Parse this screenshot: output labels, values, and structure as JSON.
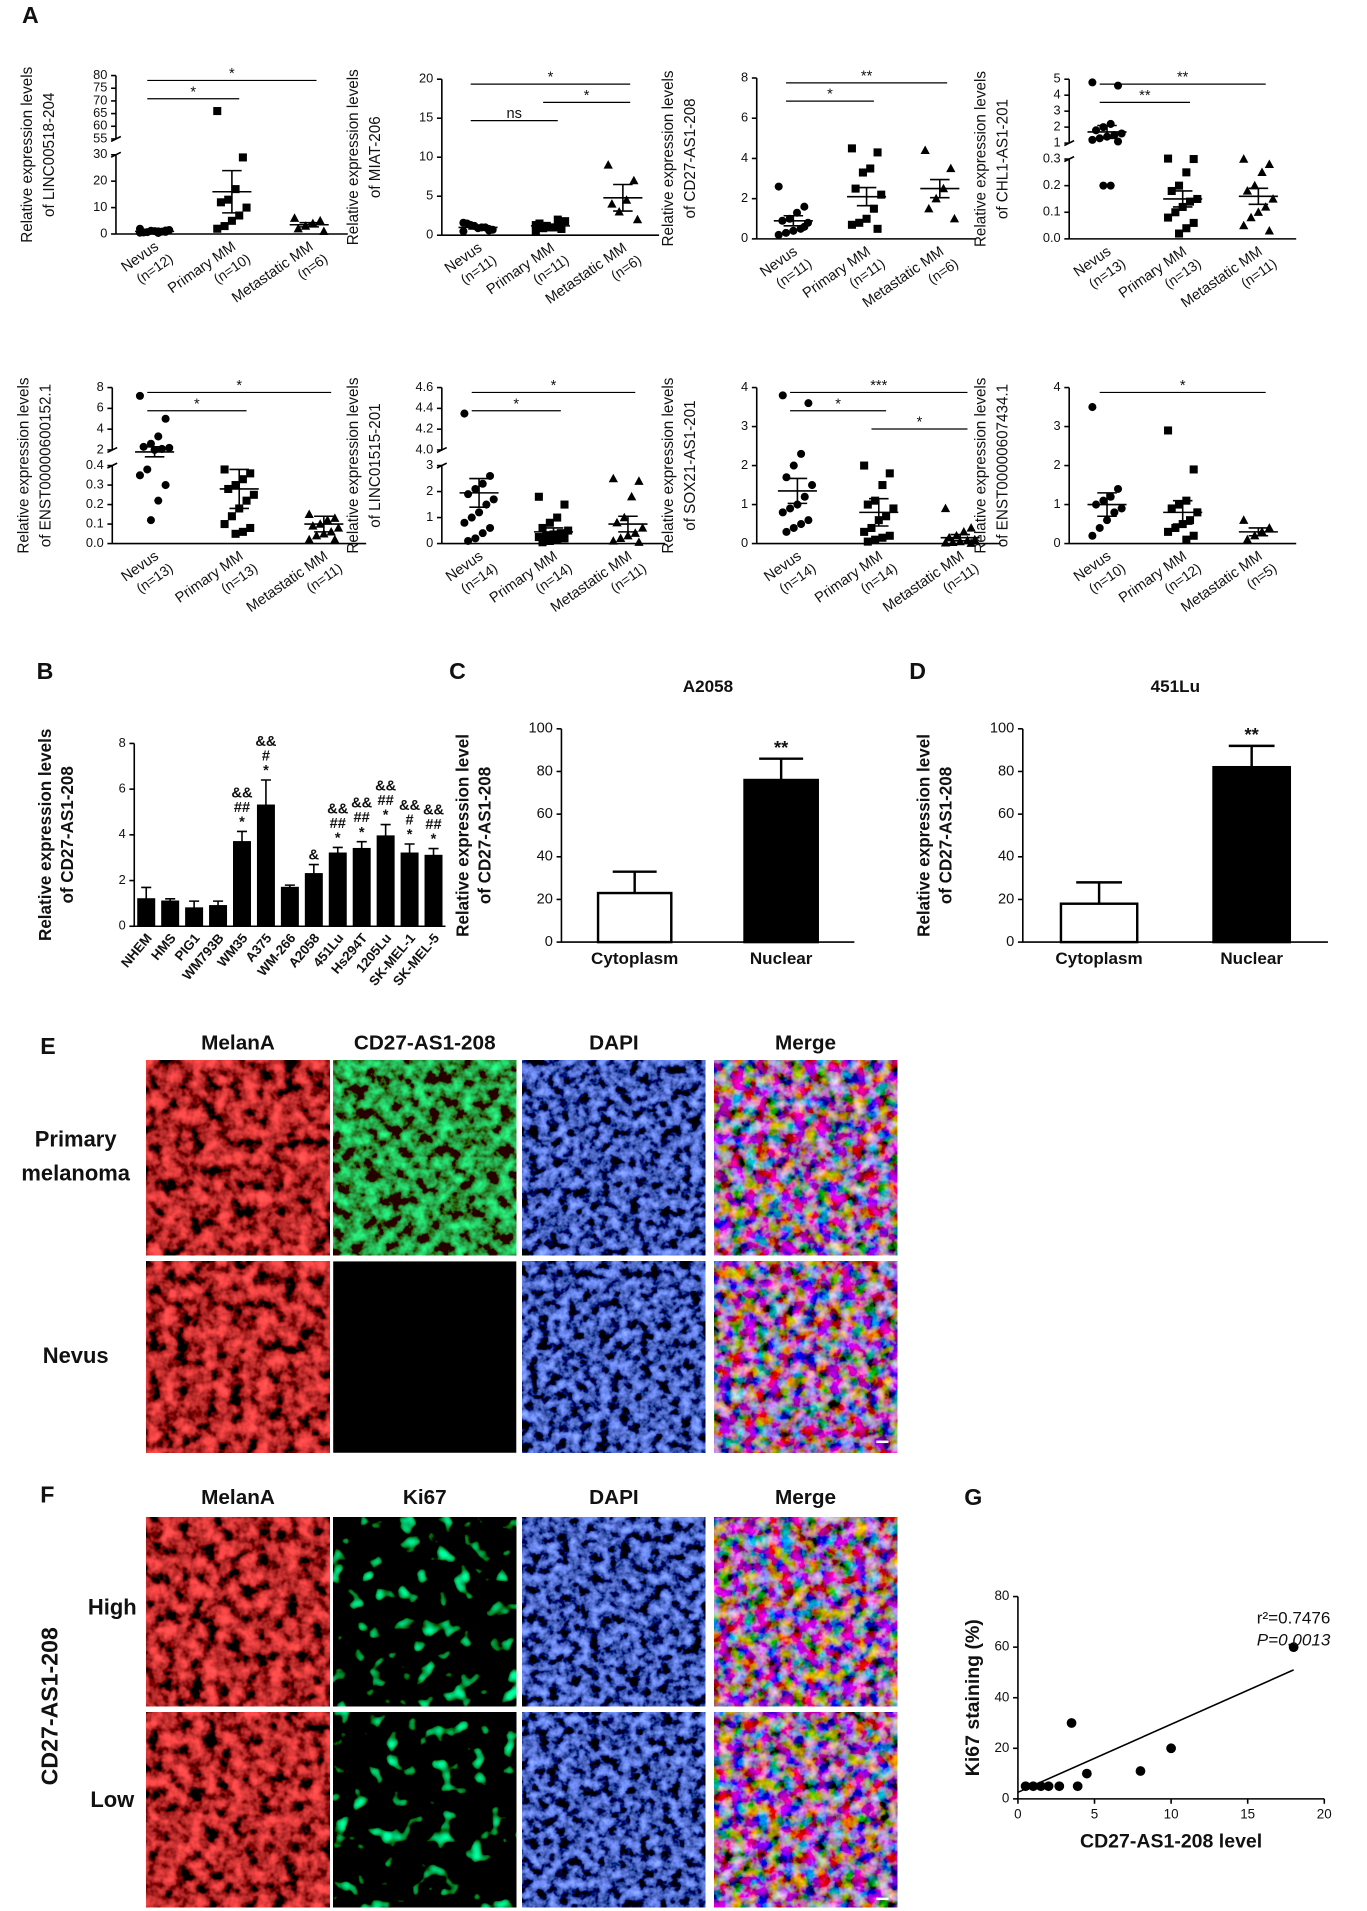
{
  "panel_labels": [
    "A",
    "B",
    "C",
    "D",
    "E",
    "F",
    "G"
  ],
  "chart_data": [
    {
      "type": "dotplot",
      "ylabel": [
        "Relative expression levels",
        "of LINC00518-204"
      ],
      "segments": [
        {
          "ylim": [
            0,
            30
          ],
          "yticks": [
            0,
            10,
            20,
            30
          ]
        },
        {
          "ylim": [
            55,
            80
          ],
          "yticks": [
            55,
            60,
            65,
            70,
            75,
            80
          ]
        }
      ],
      "groups": [
        {
          "name": "Nevus",
          "n_label": "(n=12)",
          "marker": "circle",
          "points": [
            0.5,
            0.8,
            1,
            1.2,
            0.6,
            1.5,
            0.9,
            1.1,
            0.7,
            2,
            1.3,
            0.4
          ],
          "mean": 1,
          "sem": 0.3
        },
        {
          "name": "Primary MM",
          "n_label": "(n=10)",
          "marker": "square",
          "points": [
            66,
            29,
            17,
            13,
            12,
            10,
            7,
            5,
            3,
            2
          ],
          "mean": 16,
          "sem": 8
        },
        {
          "name": "Metastatic MM",
          "n_label": "(n=6)",
          "marker": "triangle",
          "points": [
            6,
            5,
            4,
            3,
            2,
            1
          ],
          "mean": 3.5,
          "sem": 0.8
        }
      ],
      "significance": [
        {
          "from": 0,
          "to": 2,
          "label": "*"
        },
        {
          "from": 0,
          "to": 1,
          "label": "*"
        }
      ]
    },
    {
      "type": "dotplot",
      "ylabel": [
        "Relative expression levels",
        "of MIAT-206"
      ],
      "ylim": [
        0,
        20
      ],
      "yticks": [
        0,
        5,
        10,
        15,
        20
      ],
      "groups": [
        {
          "name": "Nevus",
          "n_label": "(n=11)",
          "marker": "circle",
          "points": [
            0.5,
            0.8,
            1,
            1.2,
            1.5,
            0.7,
            1,
            0.9,
            1.3,
            1.6,
            0.6
          ],
          "mean": 1,
          "sem": 0.2
        },
        {
          "name": "Primary MM",
          "n_label": "(n=11)",
          "marker": "square",
          "points": [
            0.5,
            0.8,
            1,
            1.2,
            1.5,
            1.8,
            2,
            1,
            0.9,
            1.3,
            1.1
          ],
          "mean": 1.2,
          "sem": 0.2
        },
        {
          "name": "Metastatic MM",
          "n_label": "(n=6)",
          "marker": "triangle",
          "points": [
            9,
            7,
            4.5,
            3,
            4,
            2
          ],
          "mean": 4.8,
          "sem": 1.7
        }
      ],
      "significance": [
        {
          "from": 0,
          "to": 2,
          "label": "*"
        },
        {
          "from": 1,
          "to": 2,
          "label": "*"
        },
        {
          "from": 0,
          "to": 1,
          "label": "ns"
        }
      ]
    },
    {
      "type": "dotplot",
      "ylabel": [
        "Relative expression levels",
        "of CD27-AS1-208"
      ],
      "ylim": [
        0,
        8
      ],
      "yticks": [
        0,
        2,
        4,
        6,
        8
      ],
      "groups": [
        {
          "name": "Nevus",
          "n_label": "(n=11)",
          "marker": "circle",
          "points": [
            2.6,
            1.6,
            1.3,
            1,
            0.9,
            0.8,
            0.5,
            0.4,
            0.3,
            0.2,
            0.6
          ],
          "mean": 0.9,
          "sem": 0.25
        },
        {
          "name": "Primary MM",
          "n_label": "(n=11)",
          "marker": "square",
          "points": [
            4.5,
            4.3,
            3.5,
            3.3,
            2.5,
            2.2,
            1.5,
            1,
            0.8,
            0.7,
            0.5
          ],
          "mean": 2.1,
          "sem": 0.45
        },
        {
          "name": "Metastatic MM",
          "n_label": "(n=6)",
          "marker": "triangle",
          "points": [
            4.4,
            3.5,
            2.5,
            2,
            1.5,
            1
          ],
          "mean": 2.5,
          "sem": 0.45
        }
      ],
      "significance": [
        {
          "from": 0,
          "to": 2,
          "label": "**"
        },
        {
          "from": 0,
          "to": 1,
          "label": "*"
        }
      ]
    },
    {
      "type": "dotplot",
      "ylabel": [
        "Relative expression levels",
        "of CHL1-AS1-201"
      ],
      "segments": [
        {
          "ylim": [
            0,
            0.3
          ],
          "yticks": [
            {
              "value": 0,
              "label": "0.0"
            },
            0.1,
            0.2,
            0.3
          ]
        },
        {
          "ylim": [
            1,
            5
          ],
          "yticks": [
            1,
            2,
            3,
            4,
            5
          ]
        }
      ],
      "groups": [
        {
          "name": "Nevus",
          "n_label": "(n=13)",
          "marker": "circle",
          "points": [
            4.8,
            4.6,
            2.2,
            2,
            1.8,
            1.6,
            1.5,
            1.4,
            1.3,
            1.2,
            1.1,
            0.2,
            0.2
          ],
          "mean": 1.7,
          "sem": 0.4
        },
        {
          "name": "Primary MM",
          "n_label": "(n=13)",
          "marker": "square",
          "points": [
            0.32,
            0.3,
            0.25,
            0.2,
            0.18,
            0.15,
            0.14,
            0.12,
            0.1,
            0.08,
            0.06,
            0.04,
            0.02
          ],
          "mean": 0.15,
          "sem": 0.03
        },
        {
          "name": "Metastatic MM",
          "n_label": "(n=11)",
          "marker": "triangle",
          "points": [
            0.3,
            0.28,
            0.25,
            0.2,
            0.18,
            0.15,
            0.12,
            0.1,
            0.08,
            0.05,
            0.03
          ],
          "mean": 0.16,
          "sem": 0.03
        }
      ],
      "significance": [
        {
          "from": 0,
          "to": 2,
          "label": "**"
        },
        {
          "from": 0,
          "to": 1,
          "label": "**"
        }
      ]
    },
    {
      "type": "dotplot",
      "ylabel": [
        "Relative expression levels",
        "of ENST00000600152.1"
      ],
      "segments": [
        {
          "ylim": [
            0,
            0.4
          ],
          "yticks": [
            {
              "value": 0,
              "label": "0.0"
            },
            0.1,
            0.2,
            0.3,
            0.4
          ]
        },
        {
          "ylim": [
            2,
            8
          ],
          "yticks": [
            2,
            4,
            6,
            8
          ]
        }
      ],
      "groups": [
        {
          "name": "Nevus",
          "n_label": "(n=13)",
          "marker": "circle",
          "points": [
            7.2,
            5,
            3.3,
            2.6,
            2.3,
            2.2,
            2.1,
            2,
            0.38,
            0.35,
            0.3,
            0.22,
            0.12
          ],
          "mean": 1.8,
          "sem": 0.5
        },
        {
          "name": "Primary MM",
          "n_label": "(n=13)",
          "marker": "square",
          "points": [
            0.38,
            0.36,
            0.33,
            0.3,
            0.28,
            0.25,
            0.22,
            0.18,
            0.14,
            0.1,
            0.08,
            0.06,
            0.05
          ],
          "mean": 0.28,
          "sem": 0.1
        },
        {
          "name": "Metastatic MM",
          "n_label": "(n=11)",
          "marker": "triangle",
          "points": [
            0.15,
            0.13,
            0.12,
            0.1,
            0.09,
            0.08,
            0.06,
            0.05,
            0.04,
            0.02,
            0.02
          ],
          "mean": 0.1,
          "sem": 0.04
        }
      ],
      "significance": [
        {
          "from": 0,
          "to": 2,
          "label": "*"
        },
        {
          "from": 0,
          "to": 1,
          "label": "*"
        }
      ]
    },
    {
      "type": "dotplot",
      "ylabel": [
        "Relative expression levels",
        "of LINC01515-201"
      ],
      "segments": [
        {
          "ylim": [
            0,
            3
          ],
          "yticks": [
            0,
            1,
            2,
            3
          ]
        },
        {
          "ylim": [
            4,
            4.6
          ],
          "yticks": [
            {
              "value": 4,
              "label": "4.0"
            },
            4.2,
            4.4,
            4.6
          ]
        }
      ],
      "groups": [
        {
          "name": "Nevus",
          "n_label": "(n=14)",
          "marker": "circle",
          "points": [
            4.35,
            2.6,
            2.3,
            2.1,
            1.9,
            1.7,
            1.5,
            1.2,
            1,
            0.8,
            0.6,
            0.4,
            0.2,
            0.1
          ],
          "mean": 1.95,
          "sem": 0.55
        },
        {
          "name": "Primary MM",
          "n_label": "(n=14)",
          "marker": "square",
          "points": [
            1.8,
            1.5,
            1,
            0.8,
            0.6,
            0.5,
            0.4,
            0.35,
            0.3,
            0.25,
            0.2,
            0.15,
            0.1,
            0.05
          ],
          "mean": 0.45,
          "sem": 0.15
        },
        {
          "name": "Metastatic MM",
          "n_label": "(n=11)",
          "marker": "triangle",
          "points": [
            2.5,
            2.4,
            1.8,
            1,
            0.8,
            0.6,
            0.4,
            0.3,
            0.2,
            0.1,
            0.05
          ],
          "mean": 0.75,
          "sem": 0.3
        }
      ],
      "significance": [
        {
          "from": 0,
          "to": 2,
          "label": "*"
        },
        {
          "from": 0,
          "to": 1,
          "label": "*"
        }
      ]
    },
    {
      "type": "dotplot",
      "ylabel": [
        "Relative expression levels",
        "of SOX21-AS1-201"
      ],
      "ylim": [
        0,
        4
      ],
      "yticks": [
        0,
        1,
        2,
        3,
        4
      ],
      "groups": [
        {
          "name": "Nevus",
          "n_label": "(n=14)",
          "marker": "circle",
          "points": [
            3.8,
            3.6,
            2.3,
            2,
            1.7,
            1.5,
            1.2,
            1,
            0.9,
            0.8,
            0.6,
            0.5,
            0.4,
            0.3
          ],
          "mean": 1.35,
          "sem": 0.32
        },
        {
          "name": "Primary MM",
          "n_label": "(n=14)",
          "marker": "square",
          "points": [
            2,
            1.8,
            1.5,
            1.1,
            1,
            0.9,
            0.7,
            0.6,
            0.4,
            0.3,
            0.2,
            0.15,
            0.1,
            0.05
          ],
          "mean": 0.8,
          "sem": 0.35
        },
        {
          "name": "Metastatic MM",
          "n_label": "(n=11)",
          "marker": "triangle",
          "points": [
            0.9,
            0.4,
            0.3,
            0.2,
            0.15,
            0.1,
            0.08,
            0.05,
            0.03,
            0.02,
            0.01
          ],
          "mean": 0.15,
          "sem": 0.08
        }
      ],
      "significance": [
        {
          "from": 0,
          "to": 2,
          "label": "***"
        },
        {
          "from": 0,
          "to": 1,
          "label": "*"
        },
        {
          "from": 1,
          "to": 2,
          "label": "*"
        }
      ]
    },
    {
      "type": "dotplot",
      "ylabel": [
        "Relative expression levels",
        "of ENST00000607434.1"
      ],
      "ylim": [
        0,
        4
      ],
      "yticks": [
        0,
        1,
        2,
        3,
        4
      ],
      "groups": [
        {
          "name": "Nevus",
          "n_label": "(n=10)",
          "marker": "circle",
          "points": [
            3.5,
            1.4,
            1.2,
            1.1,
            1,
            0.9,
            0.8,
            0.6,
            0.4,
            0.2
          ],
          "mean": 1,
          "sem": 0.3
        },
        {
          "name": "Primary MM",
          "n_label": "(n=12)",
          "marker": "square",
          "points": [
            2.9,
            1.9,
            1.1,
            1,
            0.9,
            0.8,
            0.6,
            0.5,
            0.4,
            0.3,
            0.2,
            0.1
          ],
          "mean": 0.8,
          "sem": 0.3
        },
        {
          "name": "Metastatic MM",
          "n_label": "(n=5)",
          "marker": "triangle",
          "points": [
            0.6,
            0.4,
            0.3,
            0.2,
            0.1
          ],
          "mean": 0.3,
          "sem": 0.1
        }
      ],
      "significance": [
        {
          "from": 0,
          "to": 2,
          "label": "*"
        }
      ]
    },
    {
      "type": "bar",
      "ylabel": [
        "Relative expression levels",
        "of CD27-AS1-208"
      ],
      "categories": [
        "NHEM",
        "HMS",
        "PIG1",
        "WM793B",
        "WM35",
        "A375",
        "WM-266",
        "A2058",
        "451Lu",
        "Hs294T",
        "1205Lu",
        "SK-MEL-1",
        "SK-MEL-5"
      ],
      "values": [
        1.2,
        1.1,
        0.8,
        0.9,
        3.7,
        5.3,
        1.7,
        2.3,
        3.2,
        3.4,
        3.95,
        3.2,
        3.1
      ],
      "errors": [
        0.5,
        0.1,
        0.3,
        0.2,
        0.45,
        1.1,
        0.1,
        0.4,
        0.25,
        0.3,
        0.5,
        0.4,
        0.3
      ],
      "color": "#000000",
      "annotations": [
        null,
        null,
        null,
        null,
        [
          "&&",
          "##",
          "*"
        ],
        [
          "&&",
          "#",
          "*"
        ],
        null,
        [
          "&"
        ],
        [
          "&&",
          "##",
          "*"
        ],
        [
          "&&",
          "##",
          "*"
        ],
        [
          "&&",
          "##",
          "*"
        ],
        [
          "&&",
          "#",
          "*"
        ],
        [
          "&&",
          "##",
          "*"
        ]
      ],
      "ylim": [
        0,
        8
      ],
      "yticks": [
        0,
        2,
        4,
        6,
        8
      ]
    },
    {
      "type": "bar",
      "title": "A2058",
      "ylabel": [
        "Relative expression level",
        "of CD27-AS1-208"
      ],
      "categories": [
        "Cytoplasm",
        "Nuclear"
      ],
      "values": [
        23,
        76
      ],
      "errors": [
        10,
        10
      ],
      "colors": [
        "#ffffff",
        "#000000"
      ],
      "annotations": [
        null,
        [
          "**"
        ]
      ],
      "ylim": [
        0,
        100
      ],
      "yticks": [
        0,
        20,
        40,
        60,
        80,
        100
      ]
    },
    {
      "type": "bar",
      "title": "451Lu",
      "ylabel": [
        "Relative expression level",
        "of CD27-AS1-208"
      ],
      "categories": [
        "Cytoplasm",
        "Nuclear"
      ],
      "values": [
        18,
        82
      ],
      "errors": [
        10,
        10
      ],
      "colors": [
        "#ffffff",
        "#000000"
      ],
      "annotations": [
        null,
        [
          "**"
        ]
      ],
      "ylim": [
        0,
        100
      ],
      "yticks": [
        0,
        20,
        40,
        60,
        80,
        100
      ]
    },
    {
      "type": "scatter",
      "xlabel": "CD27-AS1-208 level",
      "ylabel": "Ki67 staining (%)",
      "x": [
        0.5,
        1,
        1.5,
        2,
        2.7,
        3.5,
        3.9,
        4.5,
        8,
        10,
        18
      ],
      "y": [
        5,
        5,
        5,
        5,
        5,
        30,
        5,
        10,
        11,
        20,
        60
      ],
      "trendline": {
        "x": [
          0,
          18
        ],
        "y": [
          2.6,
          51
        ]
      },
      "annotations": [
        "r²=0.7476",
        "P=0.0013"
      ],
      "xlim": [
        0,
        20
      ],
      "xticks": [
        0,
        5,
        10,
        15,
        20
      ],
      "ylim": [
        0,
        80
      ],
      "yticks": [
        0,
        20,
        40,
        60,
        80
      ]
    }
  ],
  "panel_e": {
    "columns": [
      "MelanA",
      "CD27-AS1-208",
      "DAPI",
      "Merge"
    ],
    "rows": [
      [
        "Primary",
        "melanoma"
      ],
      [
        "Nevus"
      ]
    ]
  },
  "panel_f": {
    "columns": [
      "MelanA",
      "Ki67",
      "DAPI",
      "Merge"
    ],
    "rows": [
      "High",
      "Low"
    ],
    "row_group": "CD27-AS1-208"
  }
}
